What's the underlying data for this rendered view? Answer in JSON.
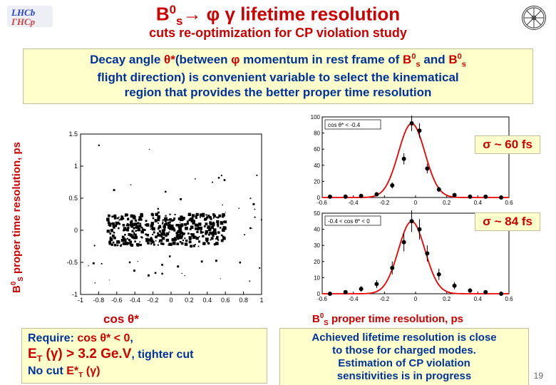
{
  "title_parts": {
    "b": "B",
    "sup0": "0",
    "sub_s": "s",
    "arrow": "→",
    "phi": "φ",
    "gamma": "γ",
    "rest": " lifetime resolution"
  },
  "subtitle": "cuts re-optimization for CP violation study",
  "topbox": {
    "l1a": "Decay angle ",
    "l1b": "θ*",
    "l1c": "(between ",
    "l1d": "φ",
    "l1e": " momentum in rest frame of ",
    "l1f": "B",
    "l1g": "0",
    "l1h": "s",
    "l1i": " and ",
    "l1j": "B",
    "l1k": "0",
    "l1l": "s",
    "l2": "flight direction) is convenient variable to select the kinematical",
    "l3": "region that provides the better proper time resolution"
  },
  "ylabel_left": {
    "a": "B",
    "b": "0",
    "c": "S",
    "d": " proper time resolution, ps"
  },
  "xlabel_left": {
    "a": "cos ",
    "b": "θ*"
  },
  "xlabel_right": {
    "a": "B",
    "b": "0",
    "c": "S",
    "d": " proper time resolution, ps"
  },
  "sigma_top": {
    "a": "σ ~ ",
    "b": "60 fs"
  },
  "sigma_bot": {
    "a": "σ ~ ",
    "b": "84 fs"
  },
  "bl": {
    "req": "Require: ",
    "cos": "cos ",
    "theta": "θ*",
    "lt": " < ",
    "zero": "0",
    "comma": ",",
    "et": "E",
    "tsub": "T",
    "gam": " (γ) > ",
    "val": "3.2 Ge.V",
    "comma2": ", ",
    "tighter": "tighter cut",
    "nocut": "No cut ",
    "estar": "E*",
    "tsub2": "T",
    "gam2": " (γ)"
  },
  "br": {
    "l1": "Achieved lifetime resolution is close",
    "l2": "to those for charged modes.",
    "l3": "Estimation of CP violation",
    "l4": "sensitivities is in progress"
  },
  "pagenum": "19",
  "scatter": {
    "type": "scatter",
    "xlim": [
      -1,
      1
    ],
    "ylim": [
      -1,
      1.5
    ],
    "xticks": [
      -1,
      -0.8,
      -0.6,
      -0.4,
      -0.2,
      0,
      0.2,
      0.4,
      0.6,
      0.8,
      1
    ],
    "yticks": [
      -1,
      -0.5,
      0,
      0.5,
      1,
      1.5
    ],
    "box_size": 2.5,
    "box_color": "#000000",
    "dense_region": {
      "xmin": -0.7,
      "xmax": 0.6,
      "ymin": -0.25,
      "ymax": 0.25,
      "n": 420
    },
    "sparse_region": {
      "xmin": -1,
      "xmax": 1,
      "ymin": -0.9,
      "ymax": 1.4,
      "n": 55
    }
  },
  "hist_top": {
    "type": "histogram_fit",
    "xlim": [
      -0.6,
      0.6
    ],
    "ylim": [
      0,
      100
    ],
    "xticks": [
      -0.6,
      -0.4,
      -0.2,
      0,
      0.2,
      0.4,
      0.6
    ],
    "yticks": [
      0,
      20,
      40,
      60,
      80,
      100
    ],
    "bins": [
      -0.55,
      -0.45,
      -0.35,
      -0.25,
      -0.15,
      -0.075,
      -0.025,
      0.025,
      0.075,
      0.15,
      0.25,
      0.35,
      0.45,
      0.55
    ],
    "values": [
      1,
      1,
      2,
      4,
      15,
      48,
      92,
      83,
      36,
      10,
      3,
      1,
      1,
      0
    ],
    "marker_color": "#000000",
    "marker_size": 3,
    "fit_color": "#ee0000",
    "fit_width": 1.8,
    "inset_text": "cos θ* < -0.4"
  },
  "hist_bot": {
    "type": "histogram_fit",
    "xlim": [
      -0.6,
      0.6
    ],
    "ylim": [
      0,
      50
    ],
    "xticks": [
      -0.6,
      -0.4,
      -0.2,
      0,
      0.2,
      0.4,
      0.6
    ],
    "yticks": [
      0,
      10,
      20,
      30,
      40,
      50
    ],
    "bins": [
      -0.55,
      -0.45,
      -0.35,
      -0.25,
      -0.15,
      -0.075,
      -0.025,
      0.025,
      0.075,
      0.15,
      0.25,
      0.35,
      0.45,
      0.55
    ],
    "values": [
      0,
      1,
      3,
      6,
      16,
      32,
      45,
      40,
      25,
      12,
      5,
      2,
      1,
      0
    ],
    "marker_color": "#000000",
    "marker_size": 3,
    "fit_color": "#ee0000",
    "fit_width": 1.8,
    "inset_text": "-0.4 < cos θ* < 0"
  },
  "logo_left": {
    "text1": "LHCb",
    "text2": "ГНСр",
    "color1": "#2244cc",
    "color2": "#cc4444",
    "bg": "#eeeef5"
  },
  "logo_right": {
    "spokes": 8
  }
}
